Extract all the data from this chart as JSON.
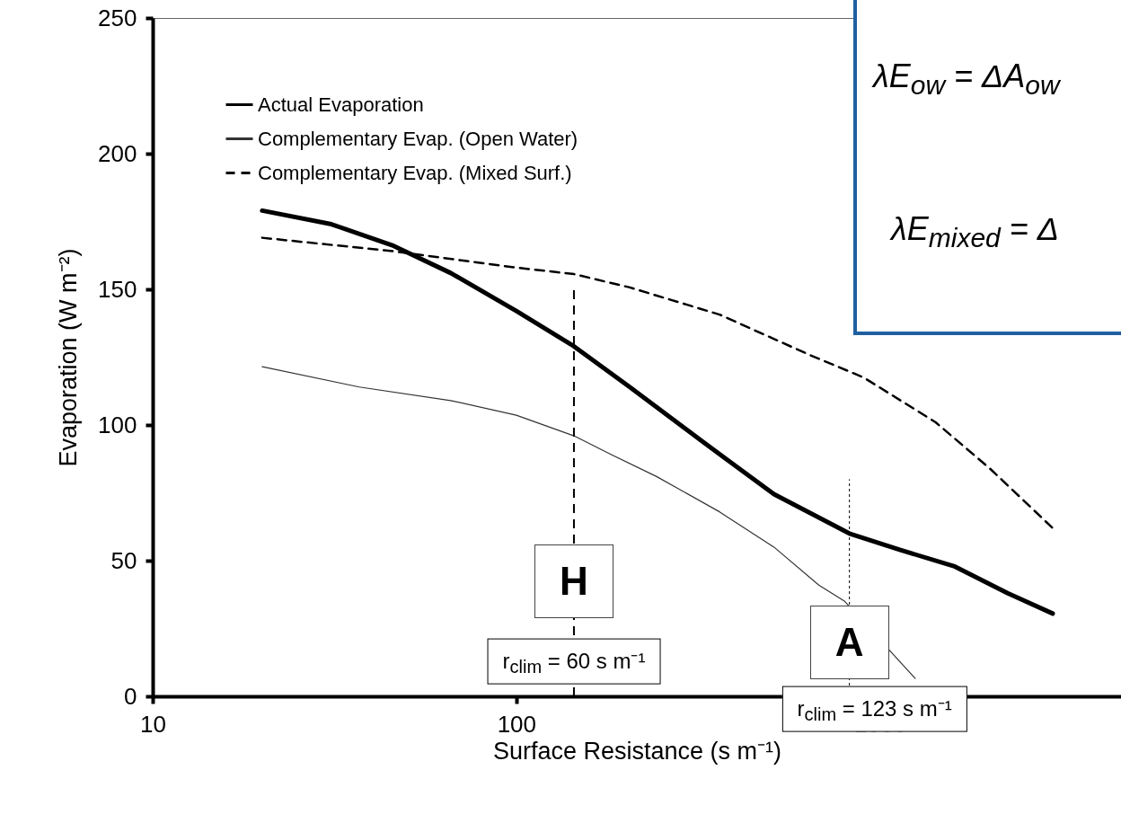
{
  "chart_data": {
    "type": "line",
    "xlabel": "Surface Resistance (s m⁻¹)",
    "ylabel": "Evaporation (W m⁻²)",
    "log": "x",
    "xlim": [
      10,
      4600
    ],
    "xticks": [
      10,
      100,
      1000
    ],
    "ylim": [
      0,
      250
    ],
    "yticks": [
      0,
      50,
      100,
      150,
      200,
      250
    ],
    "legend": "top left",
    "series": [
      {
        "name": "Actual Evaporation",
        "color": "#000000",
        "line_style": "solid",
        "x": [
          20,
          31,
          46,
          66,
          100,
          144,
          205,
          324,
          511,
          824,
          1133,
          1596,
          2245,
          2985
        ],
        "values": [
          179,
          174,
          166,
          156,
          142,
          129,
          114,
          94,
          74.5,
          60,
          54,
          48,
          38,
          30.5
        ]
      },
      {
        "name": "Complementary  Evap. (Open Water)",
        "color": "#333333",
        "line_style": "solid",
        "x": [
          20,
          37,
          66,
          100,
          144,
          183,
          243,
          362,
          511,
          679,
          800,
          1250
        ],
        "values": [
          121.5,
          114,
          109,
          103.6,
          96,
          89,
          81,
          68,
          55,
          41,
          35,
          6.6
        ]
      },
      {
        "name": "Complementary  Evap. (Mixed Surf.)",
        "color": "#000000",
        "line_style": "dashed",
        "x": [
          20,
          46,
          100,
          144,
          205,
          362,
          641,
          902,
          1422,
          2004,
          2985
        ],
        "values": [
          169,
          164,
          158,
          155.6,
          150.7,
          140.7,
          125.8,
          117.5,
          101,
          84,
          62
        ]
      }
    ],
    "ref_lines": [
      {
        "axis": "x",
        "value": 144,
        "label": "H",
        "line_style": "dashed"
      },
      {
        "axis": "x",
        "value": 824,
        "label": "A",
        "line_style": "dotted"
      }
    ],
    "annotations": [
      {
        "text": "r$_{clim}$ = 60 s m⁻¹",
        "x": 144,
        "y": 13
      },
      {
        "text": "r$_{clim}$ = 123 s m⁻¹",
        "x": 824,
        "y": 0
      },
      "λE$_{ow}$ = ΔA$_{ow}$",
      "λE$_{mixed}$ = Δ"
    ]
  }
}
